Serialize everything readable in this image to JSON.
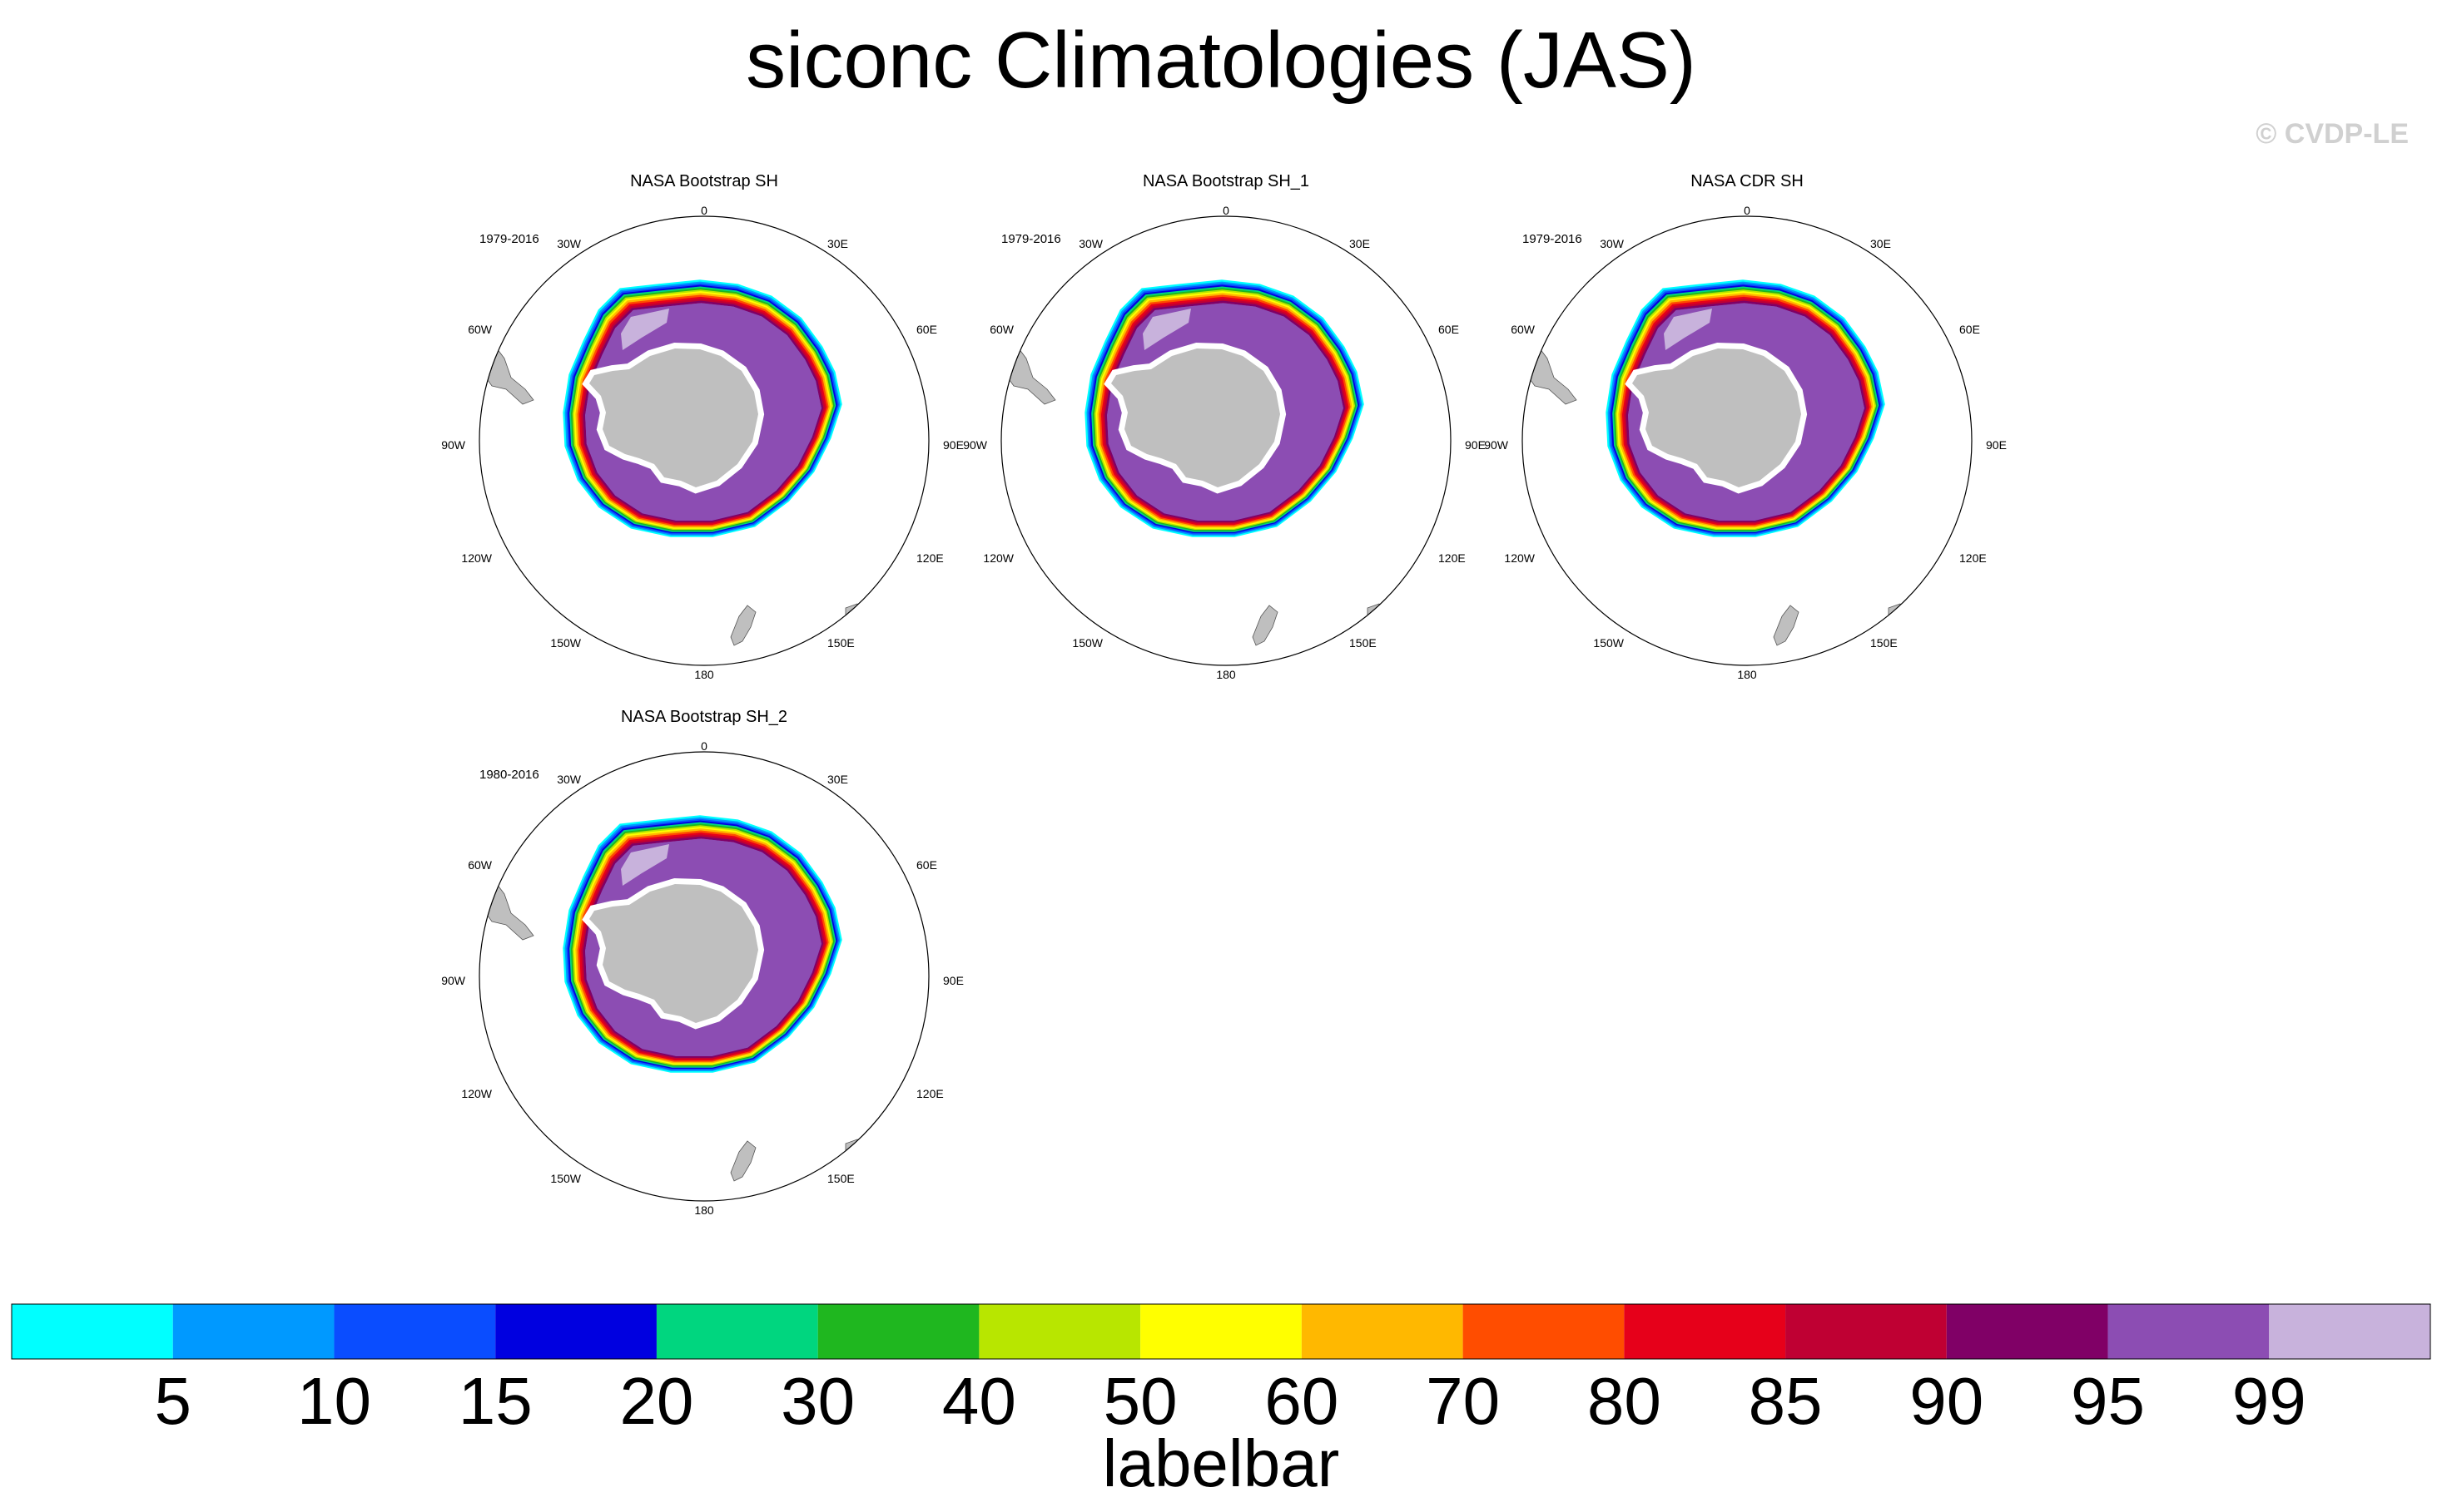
{
  "figure": {
    "title": "siconc Climatologies (JAS)",
    "copyright": "© CVDP-LE",
    "colorbar_title": "labelbar"
  },
  "panels": [
    {
      "title": "NASA Bootstrap SH",
      "years": "1979-2016"
    },
    {
      "title": "NASA Bootstrap SH_1",
      "years": "1979-2016"
    },
    {
      "title": "NASA CDR SH",
      "years": "1979-2016"
    },
    {
      "title": "NASA Bootstrap SH_2",
      "years": "1980-2016"
    }
  ],
  "map_labels": {
    "lon_0": "0",
    "lon_30e": "30E",
    "lon_60e": "60E",
    "lon_90e": "90E",
    "lon_120e": "120E",
    "lon_150e": "150E",
    "lon_180": "180",
    "lon_150w": "150W",
    "lon_120w": "120W",
    "lon_90w": "90W",
    "lon_60w": "60W",
    "lon_30w": "30W"
  },
  "map_colors": {
    "land": "#bfbfbf",
    "ice_ring": [
      "#00ffff",
      "#0099ff",
      "#0a4dff",
      "#0000e0",
      "#00d67f",
      "#1fb71f",
      "#b8e600",
      "#ffff00",
      "#ffb800",
      "#ff4d00",
      "#e6001a",
      "#bf0033",
      "#800066",
      "#8c4db3",
      "#c8b2dc"
    ]
  },
  "colorbar": {
    "colors": [
      "#00ffff",
      "#0099ff",
      "#0a4dff",
      "#0000e0",
      "#00d67f",
      "#1fb71f",
      "#b8e600",
      "#ffff00",
      "#ffb800",
      "#ff4d00",
      "#e6001a",
      "#bf0033",
      "#800066",
      "#8c4db3",
      "#c8b2dc"
    ],
    "labels": [
      "5",
      "10",
      "15",
      "20",
      "30",
      "40",
      "50",
      "60",
      "70",
      "80",
      "85",
      "90",
      "95",
      "99"
    ]
  }
}
